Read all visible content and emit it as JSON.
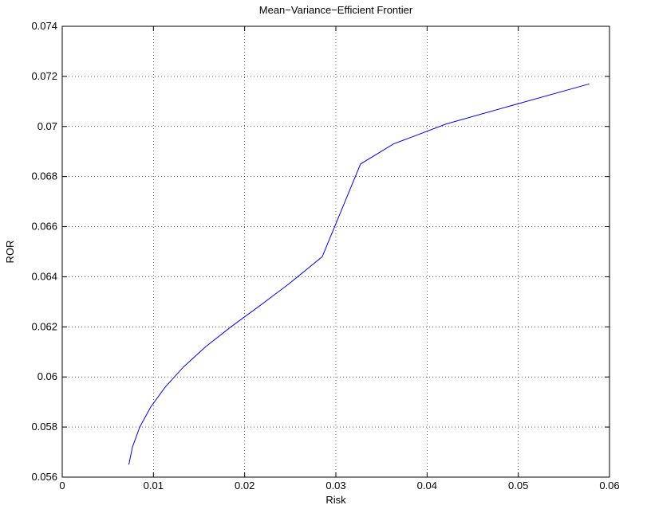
{
  "chart_data": {
    "type": "line",
    "title": "Mean−Variance−Efficient Frontier",
    "xlabel": "Risk",
    "ylabel": "ROR",
    "xlim": [
      0,
      0.06
    ],
    "ylim": [
      0.056,
      0.074
    ],
    "xticks": [
      0,
      0.01,
      0.02,
      0.03,
      0.04,
      0.05,
      0.06
    ],
    "xtick_labels": [
      "0",
      "0.01",
      "0.02",
      "0.03",
      "0.04",
      "0.05",
      "0.06"
    ],
    "yticks": [
      0.056,
      0.058,
      0.06,
      0.062,
      0.064,
      0.066,
      0.068,
      0.07,
      0.072,
      0.074
    ],
    "ytick_labels": [
      "0.056",
      "0.058",
      "0.06",
      "0.062",
      "0.064",
      "0.066",
      "0.068",
      "0.07",
      "0.072",
      "0.074"
    ],
    "grid": true,
    "series": [
      {
        "color": "#0000ff",
        "x": [
          0.0073,
          0.0077,
          0.0085,
          0.0097,
          0.0113,
          0.0133,
          0.0157,
          0.0185,
          0.0215,
          0.0248,
          0.0285,
          0.0327,
          0.0363,
          0.0421,
          0.0499,
          0.0578
        ],
        "y": [
          0.0565,
          0.0572,
          0.058,
          0.0588,
          0.0596,
          0.0604,
          0.0612,
          0.062,
          0.0628,
          0.0637,
          0.0648,
          0.0685,
          0.0693,
          0.0701,
          0.0709,
          0.0717
        ]
      }
    ]
  }
}
